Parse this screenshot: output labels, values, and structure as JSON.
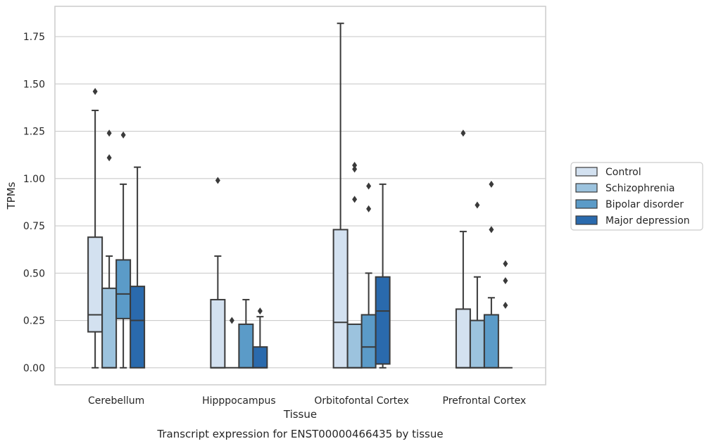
{
  "chart_data": {
    "type": "box",
    "caption": "Transcript expression for ENST00000466435 by tissue",
    "xlabel": "Tissue",
    "ylabel": "TPMs",
    "ylim": [
      -0.09,
      1.91
    ],
    "yticks": [
      0.0,
      0.25,
      0.5,
      0.75,
      1.0,
      1.25,
      1.5,
      1.75
    ],
    "ytick_labels": [
      "0.00",
      "0.25",
      "0.50",
      "0.75",
      "1.00",
      "1.25",
      "1.50",
      "1.75"
    ],
    "grid": true,
    "legend_position": "right",
    "categories": [
      "Cerebellum",
      "Hipppocampus",
      "Orbitofontal Cortex",
      "Prefrontal Cortex"
    ],
    "series": [
      {
        "name": "Control",
        "color": "#d3e1f0",
        "boxes": [
          {
            "q1": 0.19,
            "median": 0.28,
            "q3": 0.69,
            "whisker_low": 0.0,
            "whisker_high": 1.36,
            "outliers": [
              1.46
            ]
          },
          {
            "q1": 0.0,
            "median": 0.0,
            "q3": 0.36,
            "whisker_low": 0.0,
            "whisker_high": 0.59,
            "outliers": [
              0.99
            ]
          },
          {
            "q1": 0.0,
            "median": 0.24,
            "q3": 0.73,
            "whisker_low": 0.0,
            "whisker_high": 1.82,
            "outliers": []
          },
          {
            "q1": 0.0,
            "median": 0.0,
            "q3": 0.31,
            "whisker_low": 0.0,
            "whisker_high": 0.72,
            "outliers": [
              1.24
            ]
          }
        ]
      },
      {
        "name": "Schizophrenia",
        "color": "#9cc3de",
        "boxes": [
          {
            "q1": 0.0,
            "median": 0.0,
            "q3": 0.42,
            "whisker_low": 0.0,
            "whisker_high": 0.59,
            "outliers": [
              1.11,
              1.24
            ]
          },
          {
            "q1": 0.0,
            "median": 0.0,
            "q3": 0.0,
            "whisker_low": 0.0,
            "whisker_high": 0.0,
            "outliers": [
              0.25
            ]
          },
          {
            "q1": 0.0,
            "median": 0.0,
            "q3": 0.23,
            "whisker_low": 0.0,
            "whisker_high": 0.23,
            "outliers": [
              0.89,
              1.05,
              1.07
            ]
          },
          {
            "q1": 0.0,
            "median": 0.0,
            "q3": 0.25,
            "whisker_low": 0.0,
            "whisker_high": 0.48,
            "outliers": [
              0.86
            ]
          }
        ]
      },
      {
        "name": "Bipolar disorder",
        "color": "#5b9bc8",
        "boxes": [
          {
            "q1": 0.26,
            "median": 0.39,
            "q3": 0.57,
            "whisker_low": 0.0,
            "whisker_high": 0.97,
            "outliers": [
              1.23
            ]
          },
          {
            "q1": 0.0,
            "median": 0.0,
            "q3": 0.23,
            "whisker_low": 0.0,
            "whisker_high": 0.36,
            "outliers": []
          },
          {
            "q1": 0.0,
            "median": 0.11,
            "q3": 0.28,
            "whisker_low": 0.0,
            "whisker_high": 0.5,
            "outliers": [
              0.84,
              0.96
            ]
          },
          {
            "q1": 0.0,
            "median": 0.0,
            "q3": 0.28,
            "whisker_low": 0.0,
            "whisker_high": 0.37,
            "outliers": [
              0.73,
              0.97
            ]
          }
        ]
      },
      {
        "name": "Major depression",
        "color": "#2a6aad",
        "boxes": [
          {
            "q1": 0.0,
            "median": 0.25,
            "q3": 0.43,
            "whisker_low": 0.0,
            "whisker_high": 1.06,
            "outliers": []
          },
          {
            "q1": 0.0,
            "median": 0.0,
            "q3": 0.11,
            "whisker_low": 0.0,
            "whisker_high": 0.27,
            "outliers": [
              0.3
            ]
          },
          {
            "q1": 0.02,
            "median": 0.3,
            "q3": 0.48,
            "whisker_low": 0.0,
            "whisker_high": 0.97,
            "outliers": []
          },
          {
            "q1": 0.0,
            "median": 0.0,
            "q3": 0.0,
            "whisker_low": 0.0,
            "whisker_high": 0.0,
            "outliers": [
              0.33,
              0.46,
              0.55
            ]
          }
        ]
      }
    ]
  }
}
